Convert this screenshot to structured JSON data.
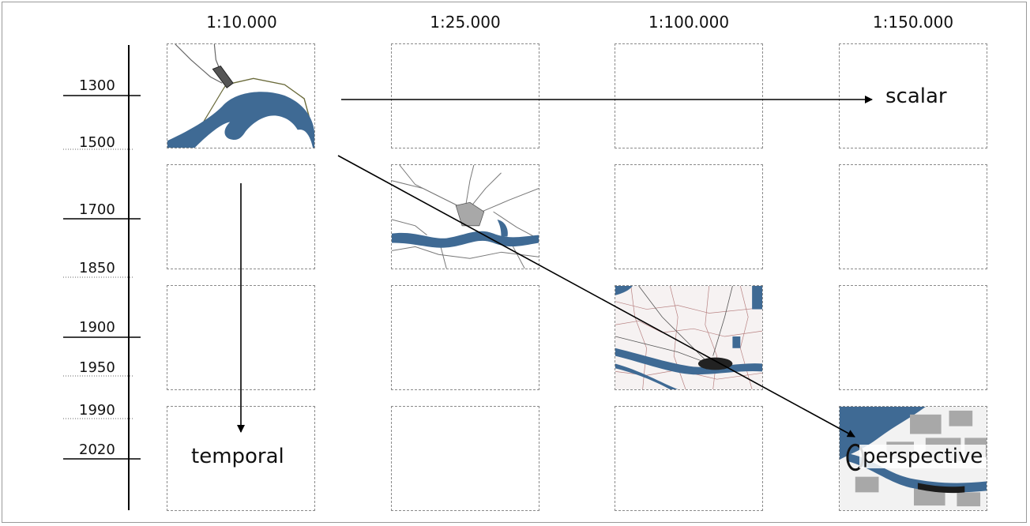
{
  "scales": [
    "1:10.000",
    "1:25.000",
    "1:100.000",
    "1:150.000"
  ],
  "timeline": {
    "major_years": [
      "1300",
      "1700",
      "1900",
      "2020"
    ],
    "minor_years": [
      "1500",
      "1850",
      "1950",
      "1990"
    ]
  },
  "labels": {
    "scalar": "scalar",
    "temporal": "temporal",
    "perspective": "perspective"
  },
  "colors": {
    "water": "#3f6a94",
    "grid_border": "#8a8a8a",
    "axis": "#000000",
    "land_grey": "#a8a8a8"
  }
}
